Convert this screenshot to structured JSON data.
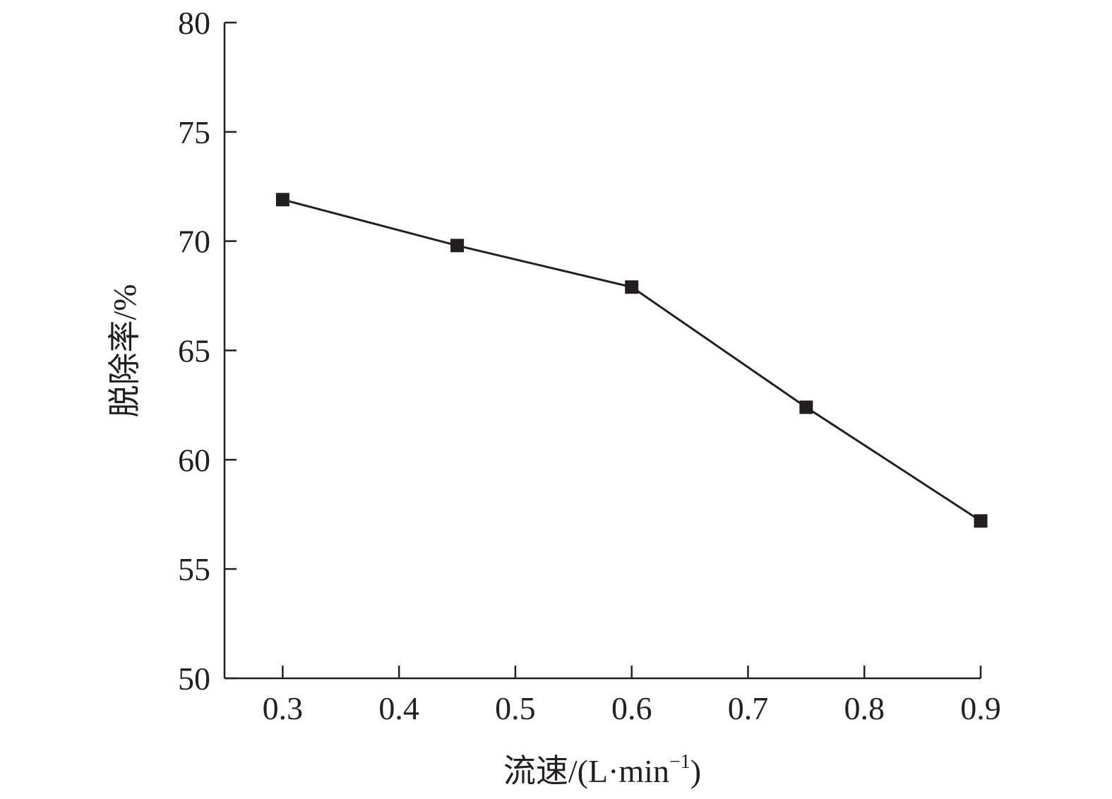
{
  "chart_data": {
    "type": "line",
    "title": "",
    "xlabel": "流速/(L·min",
    "xlabel_sup": "−1",
    "xlabel_close": ")",
    "ylabel": "脱除率/%",
    "xlim": [
      0.25,
      0.9
    ],
    "ylim": [
      50,
      80
    ],
    "xticks": [
      0.3,
      0.4,
      0.5,
      0.6,
      0.7,
      0.8,
      0.9
    ],
    "xtick_labels": [
      "0.3",
      "0.4",
      "0.5",
      "0.6",
      "0.7",
      "0.8",
      "0.9"
    ],
    "yticks": [
      50,
      55,
      60,
      65,
      70,
      75,
      80
    ],
    "ytick_labels": [
      "50",
      "55",
      "60",
      "65",
      "70",
      "75",
      "80"
    ],
    "grid": false,
    "series": [
      {
        "marker": "square",
        "color": "#231f20",
        "x": [
          0.3,
          0.45,
          0.6,
          0.75,
          0.9
        ],
        "y": [
          71.9,
          69.8,
          67.9,
          62.4,
          57.2
        ]
      }
    ]
  }
}
